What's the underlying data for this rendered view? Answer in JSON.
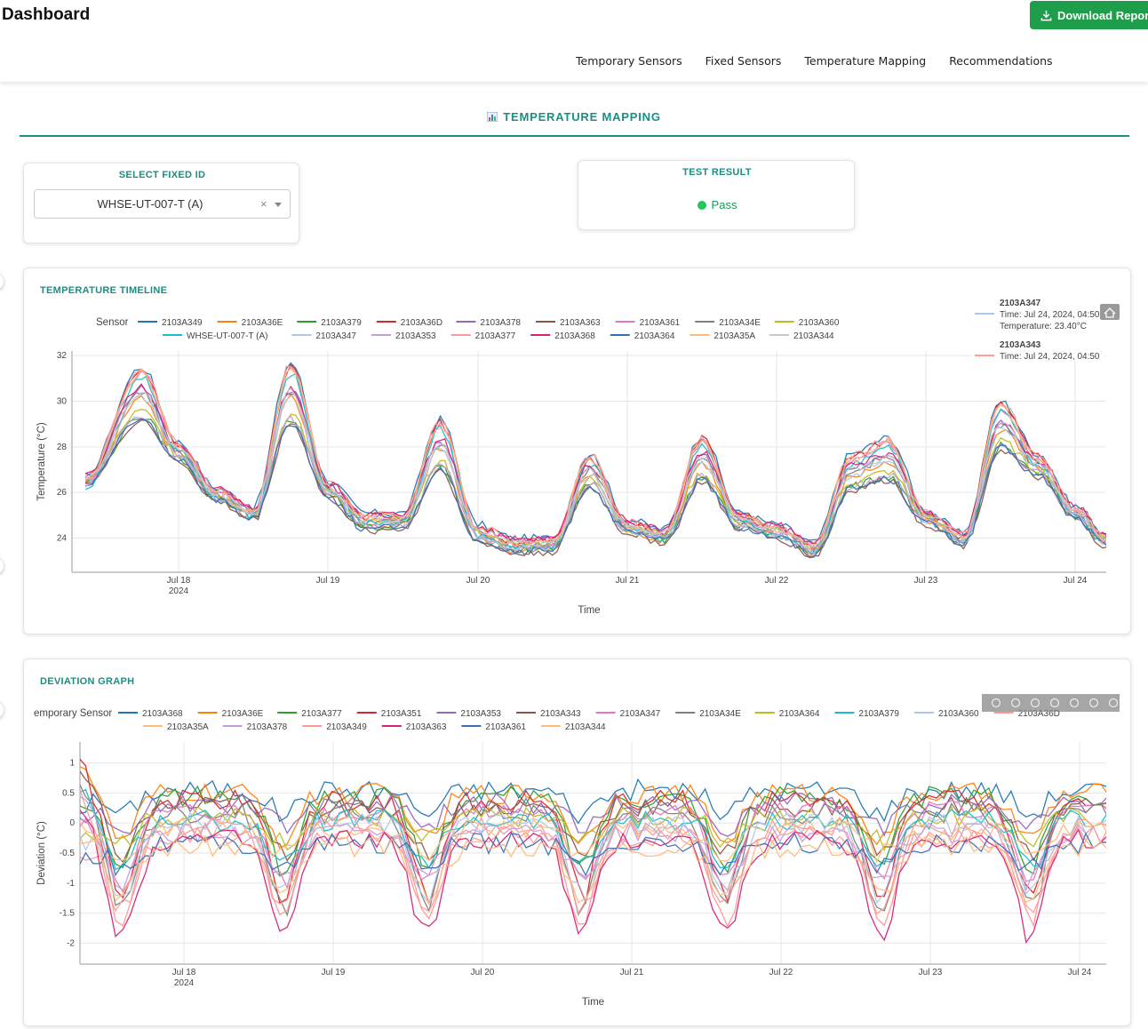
{
  "header": {
    "title": "Dashboard",
    "download_label": "Download Report",
    "nav": [
      "Temporary Sensors",
      "Fixed Sensors",
      "Temperature Mapping",
      "Recommendations"
    ]
  },
  "section": {
    "title": "TEMPERATURE MAPPING",
    "icon": "bar-chart-icon"
  },
  "select_fixed": {
    "label": "SELECT FIXED ID",
    "value": "WHSE-UT-007-T (A)",
    "clear": "×"
  },
  "test_result": {
    "label": "TEST RESULT",
    "value": "Pass",
    "status_color": "#22c55e"
  },
  "colors": {
    "accent": "#1a8f82",
    "button": "#1e9e4a"
  },
  "timeline": {
    "card_title": "TEMPERATURE TIMELINE",
    "legend_title": "Sensor",
    "hover": [
      {
        "sensor": "2103A347",
        "time": "Time: Jul 24, 2024, 04:50",
        "value": "Temperature: 23.40°C"
      },
      {
        "sensor": "2103A343",
        "time": "Time: Jul 24, 2024, 04:50"
      }
    ]
  },
  "deviation": {
    "card_title": "DEVIATION GRAPH",
    "legend_title": "emporary Sensor"
  },
  "chart_data": [
    {
      "type": "line",
      "xlabel": "Time",
      "ylabel": "Temperature (°C)",
      "x_ticks": [
        "Jul 18",
        "Jul 19",
        "Jul 20",
        "Jul 21",
        "Jul 22",
        "Jul 23",
        "Jul 24"
      ],
      "x_year": "2024",
      "y_ticks": [
        24,
        26,
        28,
        30,
        32
      ],
      "ylim": [
        22.5,
        32.2
      ],
      "grid": true,
      "legend": [
        "2103A349",
        "2103A36E",
        "2103A379",
        "2103A36D",
        "2103A378",
        "2103A363",
        "2103A361",
        "2103A34E",
        "2103A360",
        "WHSE-UT-007-T (A)",
        "2103A347",
        "2103A353",
        "2103A377",
        "2103A368",
        "2103A364",
        "2103A35A",
        "2103A344"
      ],
      "series_colors": [
        "#1f77b4",
        "#ff7f0e",
        "#2ca02c",
        "#d62728",
        "#9467bd",
        "#8c564b",
        "#e377c2",
        "#7f7f7f",
        "#bcbd22",
        "#17becf",
        "#aec7e8",
        "#c49fd6",
        "#ff9896",
        "#d6227a",
        "#3b6fb5",
        "#ffbb78",
        "#c7c7c7"
      ],
      "x": [
        "Jul 17 09:00",
        "Jul 17 18:00",
        "Jul 18 00:00",
        "Jul 18 06:00",
        "Jul 18 12:00",
        "Jul 18 18:00",
        "Jul 19 00:00",
        "Jul 19 06:00",
        "Jul 19 12:00",
        "Jul 19 18:00",
        "Jul 20 00:00",
        "Jul 20 06:00",
        "Jul 20 12:00",
        "Jul 20 18:00",
        "Jul 21 00:00",
        "Jul 21 06:00",
        "Jul 21 12:00",
        "Jul 21 18:00",
        "Jul 22 00:00",
        "Jul 22 06:00",
        "Jul 22 12:00",
        "Jul 22 18:00",
        "Jul 23 00:00",
        "Jul 23 06:00",
        "Jul 23 12:00",
        "Jul 23 18:00",
        "Jul 24 00:00",
        "Jul 24 05:00"
      ],
      "base_hot": [
        26.5,
        31.3,
        28.0,
        26.0,
        25.2,
        31.5,
        26.3,
        24.9,
        24.9,
        29.0,
        24.4,
        23.8,
        23.8,
        27.5,
        24.6,
        24.2,
        28.3,
        24.9,
        24.4,
        23.6,
        27.5,
        28.2,
        25.0,
        24.0,
        29.8,
        27.5,
        25.2,
        24.0
      ],
      "base_cool": [
        26.5,
        29.2,
        27.5,
        25.8,
        25.0,
        29.0,
        25.9,
        24.5,
        24.6,
        27.0,
        24.0,
        23.5,
        23.6,
        26.3,
        24.4,
        24.0,
        26.5,
        24.6,
        24.2,
        23.4,
        26.2,
        26.6,
        24.8,
        23.9,
        27.9,
        26.8,
        25.0,
        23.8
      ]
    },
    {
      "type": "line",
      "xlabel": "Time",
      "ylabel": "Deviation (°C)",
      "x_ticks": [
        "Jul 18",
        "Jul 19",
        "Jul 20",
        "Jul 21",
        "Jul 22",
        "Jul 23",
        "Jul 24"
      ],
      "x_year": "2024",
      "y_ticks": [
        -2,
        -1.5,
        -1,
        -0.5,
        0,
        0.5,
        1
      ],
      "ylim": [
        -2.35,
        1.35
      ],
      "grid": true,
      "legend": [
        "2103A368",
        "2103A36E",
        "2103A377",
        "2103A351",
        "2103A353",
        "2103A343",
        "2103A347",
        "2103A34E",
        "2103A364",
        "2103A379",
        "2103A360",
        "2103A36D",
        "2103A35A",
        "2103A378",
        "2103A349",
        "2103A363",
        "2103A361",
        "2103A344"
      ],
      "series_colors": [
        "#1f77b4",
        "#ff7f0e",
        "#2ca02c",
        "#d62728",
        "#9467bd",
        "#8c564b",
        "#e377c2",
        "#7f7f7f",
        "#bcbd22",
        "#17becf",
        "#aec7e8",
        "#ff9896",
        "#ffbb78",
        "#c49fd6",
        "#ff9896",
        "#d6227a",
        "#3b6fb5",
        "#ffbb78"
      ]
    }
  ]
}
